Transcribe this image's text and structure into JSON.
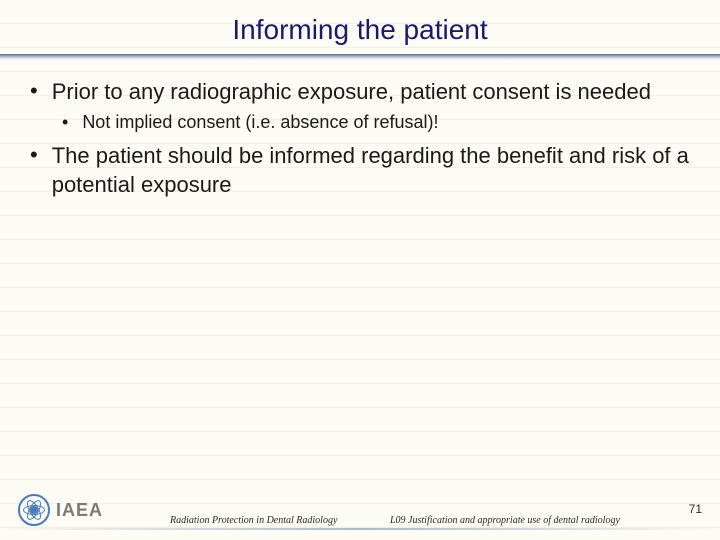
{
  "title": "Informing the patient",
  "bullets": [
    {
      "level": 1,
      "text": "Prior to any radiographic exposure, patient consent is needed"
    },
    {
      "level": 2,
      "text": "Not implied consent (i.e. absence of refusal)!"
    },
    {
      "level": 1,
      "text": "The patient should be informed regarding the benefit and risk of a potential exposure"
    }
  ],
  "logo_text": "IAEA",
  "footer_center": "Radiation Protection in Dental Radiology",
  "footer_right": "L09 Justification and appropriate use of dental radiology",
  "page_number": "71",
  "colors": {
    "title_color": "#1a1a6a",
    "text_color": "#1a1a1a",
    "background": "#fcfbf4",
    "line_color": "#f2f0e4",
    "logo_color": "#4a7ab8",
    "logo_text_color": "#7a7a7a"
  },
  "fonts": {
    "title_size": 28,
    "bullet1_size": 22,
    "bullet2_size": 18,
    "footer_size": 10,
    "pagenum_size": 12
  }
}
